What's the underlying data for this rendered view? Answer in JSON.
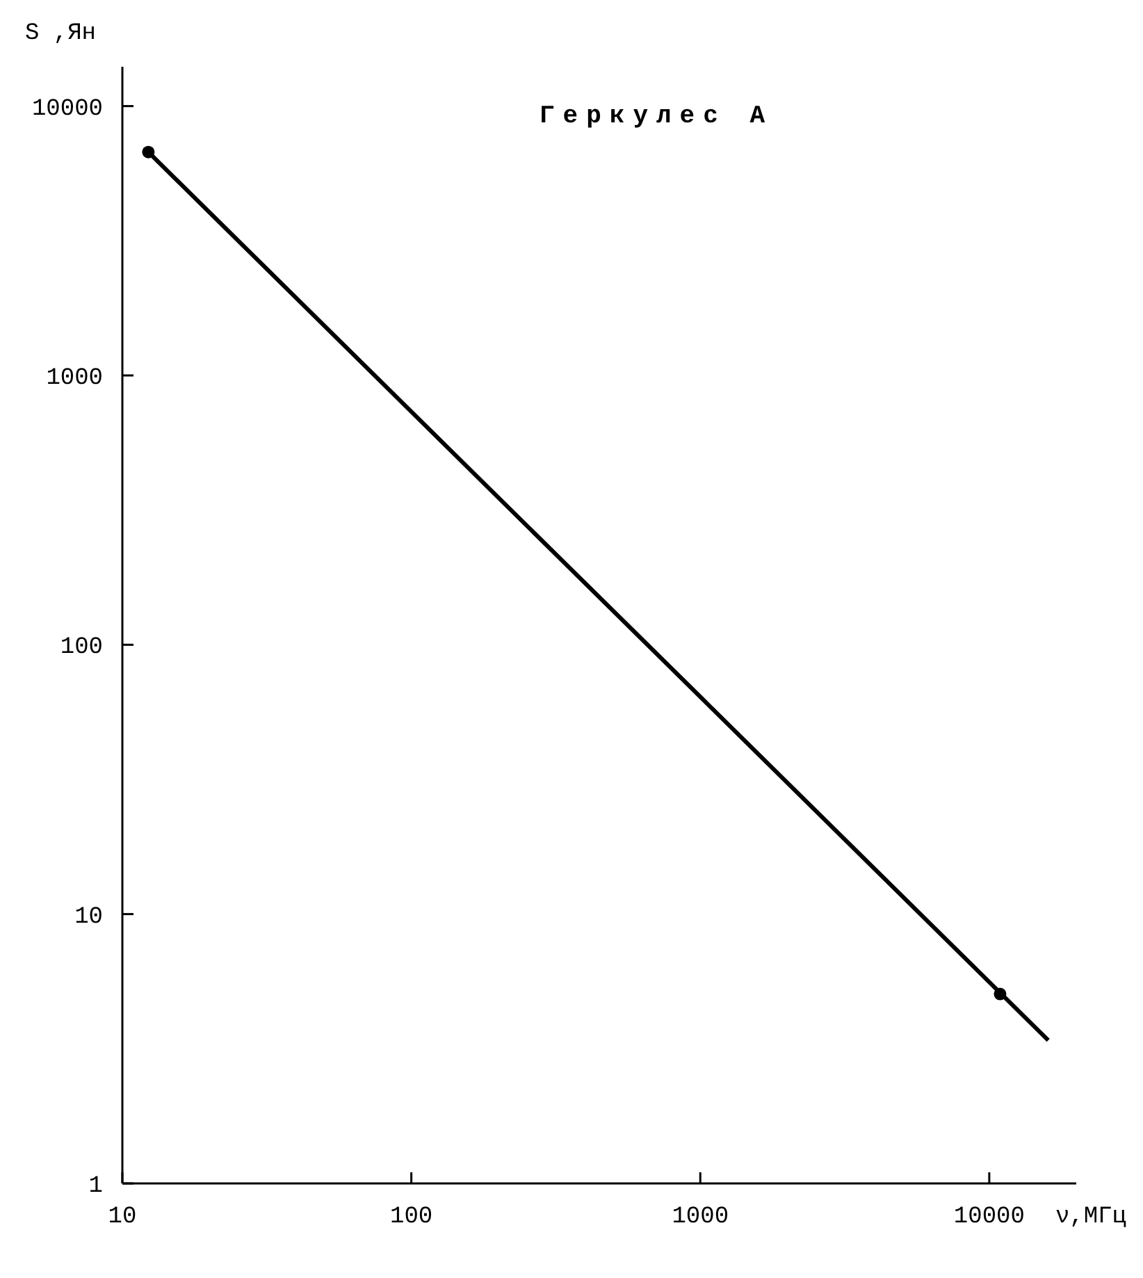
{
  "chart_data": {
    "type": "line",
    "title": "Геркулес А",
    "xlabel": "ν,МГц",
    "ylabel": "S ,Ян",
    "log": "xy",
    "grid": false,
    "xlim": [
      10,
      20000
    ],
    "ylim": [
      1,
      14000
    ],
    "xticks": [
      10,
      100,
      1000,
      10000
    ],
    "yticks": [
      1,
      10,
      100,
      1000,
      10000
    ],
    "series": [
      {
        "type": "line",
        "color": "#000000",
        "marker": "none",
        "line_style": "solid",
        "x": [
          12.3,
          16000
        ],
        "values": [
          6750,
          3.4
        ]
      },
      {
        "type": "scatter",
        "color": "#000000",
        "marker": "circle",
        "x": [
          12.3,
          10900
        ],
        "values": [
          6750,
          5.05
        ]
      }
    ]
  }
}
